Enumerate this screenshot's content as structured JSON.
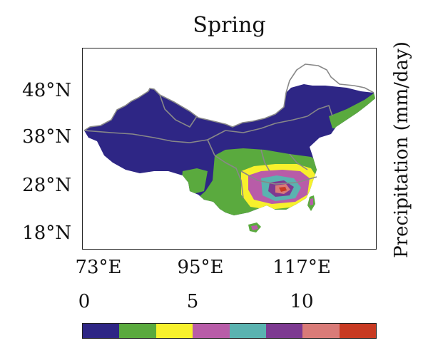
{
  "title": "Spring",
  "lat_labels": [
    "48°N",
    "38°N",
    "28°N",
    "18°N"
  ],
  "lon_labels": [
    "73°E",
    "95°E",
    "117°E"
  ],
  "colorbar": {
    "tick_labels": [
      "0",
      "5",
      "10"
    ],
    "colors": [
      "#2e2685",
      "#5aaa3e",
      "#f7f12c",
      "#b85ca8",
      "#5ab3b0",
      "#7d3a91",
      "#d97b78",
      "#c83a22"
    ],
    "unit_label": "Precipitation (mm/day)"
  },
  "map_colors": {
    "border": "#888888",
    "frame": "#222222"
  }
}
